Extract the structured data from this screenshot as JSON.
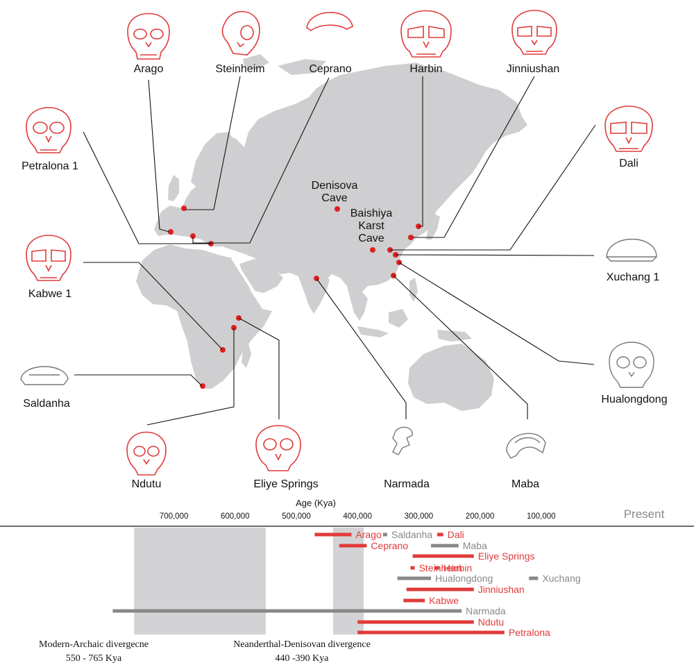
{
  "colors": {
    "red": "#e03a3a",
    "gray": "#888888",
    "land": "#cfcfd1",
    "shade": "#d3d3d5",
    "site_dot": "#e02020"
  },
  "map_labels": {
    "denisova": [
      "Denisova",
      "Cave"
    ],
    "baishiya": [
      "Baishiya",
      "Karst",
      "Cave"
    ]
  },
  "specimens": [
    {
      "id": "arago",
      "name": "Arago",
      "color": "red",
      "icon": "skull-frontal-icon"
    },
    {
      "id": "steinheim",
      "name": "Steinheim",
      "color": "red",
      "icon": "skull-oblique-icon"
    },
    {
      "id": "ceprano",
      "name": "Ceprano",
      "color": "red",
      "icon": "skullcap-icon"
    },
    {
      "id": "harbin",
      "name": "Harbin",
      "color": "red",
      "icon": "skull-frontal-icon"
    },
    {
      "id": "jinniushan",
      "name": "Jinniushan",
      "color": "red",
      "icon": "skull-frontal-icon"
    },
    {
      "id": "petralona",
      "name": "Petralona 1",
      "color": "red",
      "icon": "skull-frontal-icon"
    },
    {
      "id": "dali",
      "name": "Dali",
      "color": "red",
      "icon": "skull-frontal-icon"
    },
    {
      "id": "kabwe",
      "name": "Kabwe 1",
      "color": "red",
      "icon": "skull-frontal-icon"
    },
    {
      "id": "xuchang",
      "name": "Xuchang 1",
      "color": "gray",
      "icon": "skullcap-icon"
    },
    {
      "id": "saldanha",
      "name": "Saldanha",
      "color": "gray",
      "icon": "skullcap-icon"
    },
    {
      "id": "hualongdong",
      "name": "Hualongdong",
      "color": "gray",
      "icon": "skull-frontal-icon"
    },
    {
      "id": "ndutu",
      "name": "Ndutu",
      "color": "red",
      "icon": "skull-frontal-icon"
    },
    {
      "id": "eliye",
      "name": "Eliye Springs",
      "color": "red",
      "icon": "skull-frontal-icon"
    },
    {
      "id": "narmada",
      "name": "Narmada",
      "color": "gray",
      "icon": "skull-fragment-icon"
    },
    {
      "id": "maba",
      "name": "Maba",
      "color": "gray",
      "icon": "skull-partial-icon"
    }
  ],
  "timeline": {
    "axis_title": "Age (Kya)",
    "present_label": "Present",
    "ticks": [
      {
        "label": "700,000",
        "value": 700000
      },
      {
        "label": "600,000",
        "value": 600000
      },
      {
        "label": "500,000",
        "value": 500000
      },
      {
        "label": "400,000",
        "value": 400000
      },
      {
        "label": "300,000",
        "value": 300000
      },
      {
        "label": "200,000",
        "value": 200000
      },
      {
        "label": "100,000",
        "value": 100000
      }
    ],
    "divergences": [
      {
        "name": "Modern-Archaic divergecne",
        "range_text": "550 - 765 Kya",
        "start": 765000,
        "end": 550000
      },
      {
        "name": "Neanderthal-Denisovan divergence",
        "range_text": "440 -390 Kya",
        "start": 440000,
        "end": 390000
      }
    ],
    "bars": [
      {
        "name": "Arago",
        "start": 470000,
        "end": 410000,
        "color": "red"
      },
      {
        "name": "Saldanha",
        "start": 355000,
        "end": 355000,
        "color": "gray"
      },
      {
        "name": "Dali",
        "start": 270000,
        "end": 260000,
        "color": "red"
      },
      {
        "name": "Ceprano",
        "start": 430000,
        "end": 385000,
        "color": "red"
      },
      {
        "name": "Maba",
        "start": 280000,
        "end": 235000,
        "color": "gray"
      },
      {
        "name": "Eliye Springs",
        "start": 310000,
        "end": 210000,
        "color": "red"
      },
      {
        "name": "Steinheim",
        "start": 310000,
        "end": 310000,
        "color": "red"
      },
      {
        "name": "Harbin",
        "start": 270000,
        "end": 270000,
        "color": "red"
      },
      {
        "name": "Hualongdong",
        "start": 335000,
        "end": 280000,
        "color": "gray"
      },
      {
        "name": "Xuchang",
        "start": 120000,
        "end": 105000,
        "color": "gray"
      },
      {
        "name": "Jinniushan",
        "start": 320000,
        "end": 210000,
        "color": "red"
      },
      {
        "name": "Kabwe",
        "start": 325000,
        "end": 290000,
        "color": "red"
      },
      {
        "name": "Narmada",
        "start": 800000,
        "end": 230000,
        "color": "gray"
      },
      {
        "name": "Ndutu",
        "start": 400000,
        "end": 210000,
        "color": "red"
      },
      {
        "name": "Petralona",
        "start": 400000,
        "end": 160000,
        "color": "red"
      }
    ]
  }
}
